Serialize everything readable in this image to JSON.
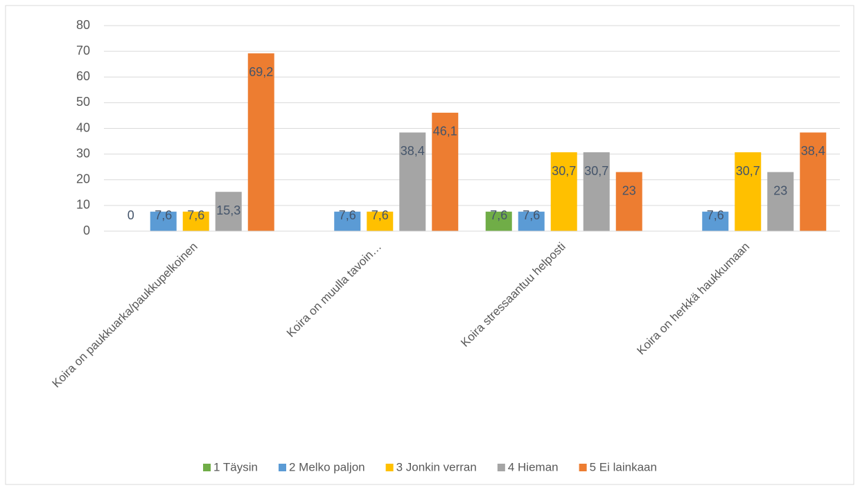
{
  "chart_data": {
    "type": "bar",
    "categories": [
      "Koira on paukkuarka/paukkupelkoinen",
      "Koira on muulla tavoin…",
      "Koira stressaantuu helposti",
      "Koira on herkkä haukkumaan"
    ],
    "series": [
      {
        "name": "1 Täysin",
        "color": "#70ad47",
        "values": [
          0,
          null,
          7.6,
          null
        ],
        "value_labels": [
          "0",
          null,
          "7,6",
          null
        ]
      },
      {
        "name": "2 Melko paljon",
        "color": "#5b9bd5",
        "values": [
          7.6,
          7.6,
          7.6,
          7.6
        ],
        "value_labels": [
          "7,6",
          "7,6",
          "7,6",
          "7,6"
        ]
      },
      {
        "name": "3 Jonkin verran",
        "color": "#ffc000",
        "values": [
          7.6,
          7.6,
          30.7,
          30.7
        ],
        "value_labels": [
          "7,6",
          "7,6",
          "30,7",
          "30,7"
        ]
      },
      {
        "name": "4 Hieman",
        "color": "#a5a5a5",
        "values": [
          15.3,
          38.4,
          30.7,
          23
        ],
        "value_labels": [
          "15,3",
          "38,4",
          "30,7",
          "23"
        ]
      },
      {
        "name": "5 Ei lainkaan",
        "color": "#ed7d31",
        "values": [
          69.2,
          46.1,
          23,
          38.4
        ],
        "value_labels": [
          "69,2",
          "46,1",
          "23",
          "38,4"
        ]
      }
    ],
    "ylim": [
      0,
      80
    ],
    "yticks": [
      0,
      10,
      20,
      30,
      40,
      50,
      60,
      70,
      80
    ],
    "grid": true,
    "legend": "bottom"
  }
}
